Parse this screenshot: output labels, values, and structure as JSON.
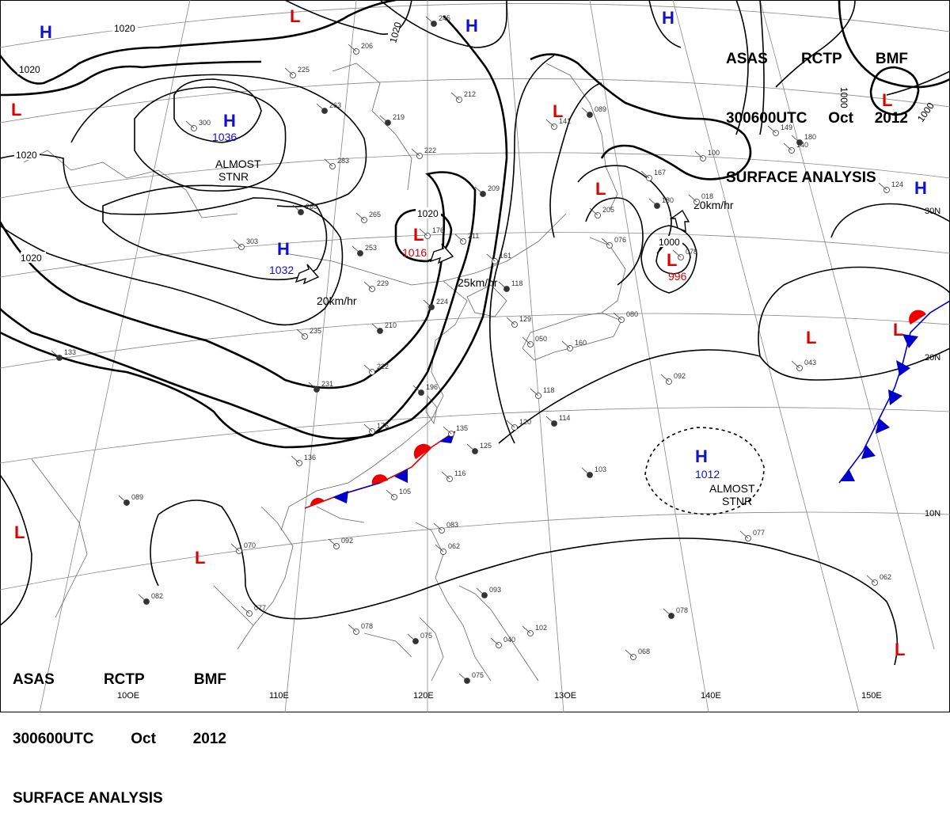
{
  "header": {
    "line1": [
      "ASAS",
      "RCTP",
      "BMF"
    ],
    "line2": [
      "300600UTC",
      "Oct",
      "2012"
    ],
    "line3": "SURFACE ANALYSIS"
  },
  "colors": {
    "high": "#1010d0",
    "low": "#e00000",
    "isobar": "#000000",
    "grid": "#888888",
    "coast": "#666666"
  },
  "longitude_labels": [
    "110E",
    "120E",
    "13OE",
    "140E",
    "150E",
    "10OE"
  ],
  "latitude_labels": [
    "30N",
    "20N",
    "10N"
  ],
  "isobar_labels": [
    "1020",
    "1020",
    "1020",
    "1020",
    "1020",
    "1020",
    "1000",
    "1000",
    "1000"
  ],
  "pressure_centers": [
    {
      "type": "H",
      "value": ""
    },
    {
      "type": "L",
      "value": ""
    },
    {
      "type": "H",
      "value": ""
    },
    {
      "type": "H",
      "value": ""
    },
    {
      "type": "L",
      "value": ""
    },
    {
      "type": "H",
      "value": "1036"
    },
    {
      "type": "H",
      "value": "1032"
    },
    {
      "type": "L",
      "value": "1016"
    },
    {
      "type": "L",
      "value": ""
    },
    {
      "type": "L",
      "value": ""
    },
    {
      "type": "L",
      "value": "996"
    },
    {
      "type": "H",
      "value": ""
    },
    {
      "type": "L",
      "value": ""
    },
    {
      "type": "L",
      "value": ""
    },
    {
      "type": "H",
      "value": "1012"
    },
    {
      "type": "L",
      "value": ""
    },
    {
      "type": "L",
      "value": ""
    },
    {
      "type": "L",
      "value": ""
    },
    {
      "type": "L",
      "value": ""
    }
  ],
  "annotations": [
    {
      "text": "ALMOST"
    },
    {
      "text": "STNR"
    },
    {
      "text": "ALMOST"
    },
    {
      "text": "STNR"
    }
  ],
  "movements": [
    "20km/hr",
    "25km/hr",
    "20km/hr"
  ],
  "station_numbers": [
    "245",
    "206",
    "212",
    "219",
    "222",
    "225",
    "263",
    "283",
    "300",
    "265",
    "265",
    "303",
    "253",
    "229",
    "235",
    "231",
    "222",
    "176",
    "196",
    "135",
    "136",
    "125",
    "105",
    "116",
    "089",
    "092",
    "070",
    "082",
    "077",
    "078",
    "075",
    "083",
    "062",
    "103",
    "092",
    "077",
    "078",
    "068",
    "043",
    "075",
    "102",
    "118",
    "114",
    "120",
    "141",
    "089",
    "100",
    "167",
    "209",
    "076",
    "080",
    "133",
    "211",
    "161",
    "224",
    "176",
    "129",
    "118",
    "160",
    "050",
    "210",
    "205",
    "018",
    "180",
    "124",
    "140",
    "180",
    "149",
    "040",
    "093",
    "062",
    "078"
  ]
}
